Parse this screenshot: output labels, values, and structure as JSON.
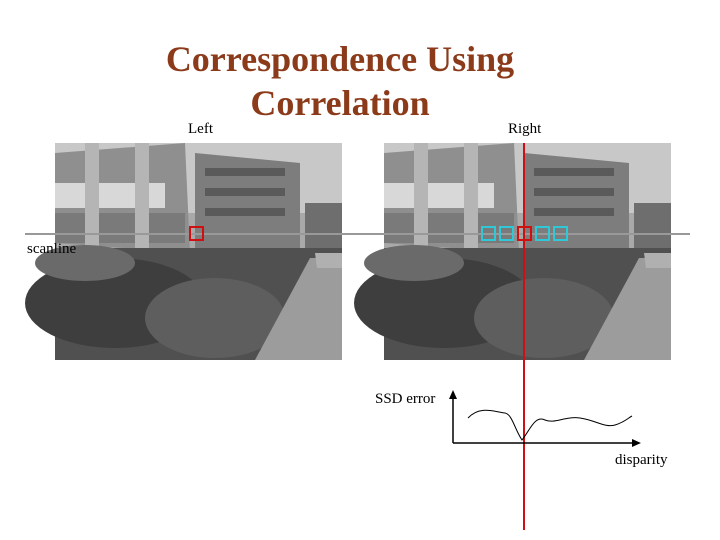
{
  "title": "Correspondence Using Correlation",
  "images": {
    "left_label": "Left",
    "right_label": "Right",
    "scanline_label": "scanline"
  },
  "plot": {
    "y_label": "SSD error",
    "x_label": "disparity"
  }
}
